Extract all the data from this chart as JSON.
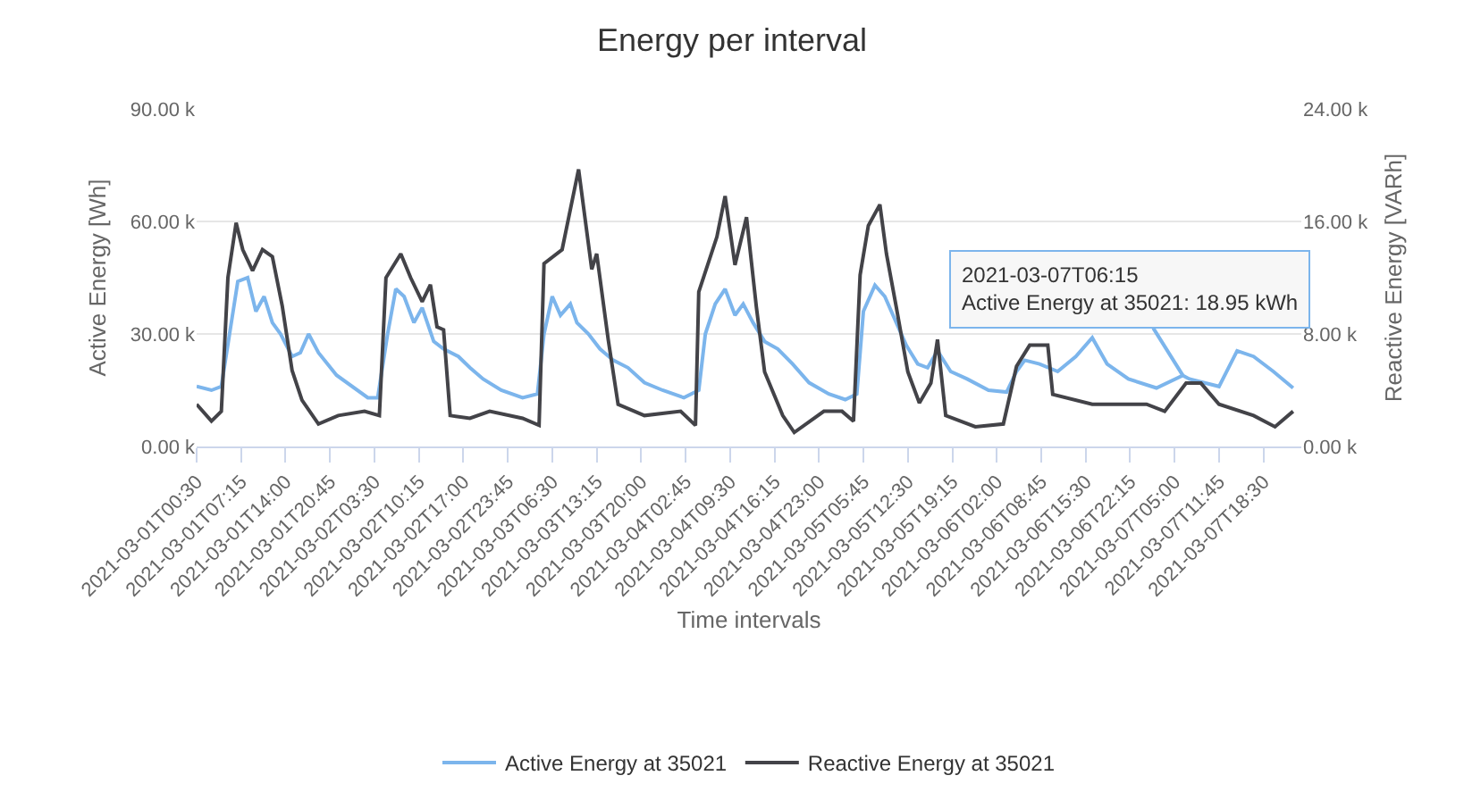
{
  "chart_data": {
    "type": "line",
    "title": "Energy per interval",
    "xlabel": "Time intervals",
    "ylabel": "Active Energy [Wh]",
    "y2label": "Reactive Energy [VARh]",
    "xlim": [
      "2021-03-01T00:30",
      "2021-03-08T00:15"
    ],
    "xticks": [
      "2021-03-01T00:30",
      "2021-03-01T07:15",
      "2021-03-01T14:00",
      "2021-03-01T20:45",
      "2021-03-02T03:30",
      "2021-03-02T10:15",
      "2021-03-02T17:00",
      "2021-03-02T23:45",
      "2021-03-03T06:30",
      "2021-03-03T13:15",
      "2021-03-03T20:00",
      "2021-03-04T02:45",
      "2021-03-04T09:30",
      "2021-03-04T16:15",
      "2021-03-04T23:00",
      "2021-03-05T05:45",
      "2021-03-05T12:30",
      "2021-03-05T19:15",
      "2021-03-06T02:00",
      "2021-03-06T08:45",
      "2021-03-06T15:30",
      "2021-03-06T22:15",
      "2021-03-07T05:00",
      "2021-03-07T11:45",
      "2021-03-07T18:30"
    ],
    "ylim": [
      0,
      90000
    ],
    "yticks": [
      {
        "value": 0,
        "label": "0.00 k"
      },
      {
        "value": 30000,
        "label": "30.00 k"
      },
      {
        "value": 60000,
        "label": "60.00 k"
      },
      {
        "value": 90000,
        "label": "90.00 k"
      }
    ],
    "y2lim": [
      0,
      24000
    ],
    "y2ticks": [
      {
        "value": 0,
        "label": "0.00 k"
      },
      {
        "value": 8000,
        "label": "8.00 k"
      },
      {
        "value": 16000,
        "label": "16.00 k"
      },
      {
        "value": 24000,
        "label": "24.00 k"
      }
    ],
    "grid": "y",
    "legend": "bottom",
    "line_style": "solid",
    "series": [
      {
        "name": "Active Energy at 35021",
        "color": "#7cb5ec",
        "x": [
          "2021-03-01T00:30",
          "2021-03-01T02:45",
          "2021-03-01T04:15",
          "2021-03-01T05:30",
          "2021-03-01T06:45",
          "2021-03-01T08:15",
          "2021-03-01T09:30",
          "2021-03-01T10:45",
          "2021-03-01T12:00",
          "2021-03-01T13:15",
          "2021-03-01T15:00",
          "2021-03-01T16:15",
          "2021-03-01T17:30",
          "2021-03-01T19:00",
          "2021-03-01T21:45",
          "2021-03-02T02:30",
          "2021-03-02T04:00",
          "2021-03-02T05:30",
          "2021-03-02T06:45",
          "2021-03-02T08:00",
          "2021-03-02T09:30",
          "2021-03-02T10:45",
          "2021-03-02T12:30",
          "2021-03-02T14:00",
          "2021-03-02T16:15",
          "2021-03-02T18:00",
          "2021-03-02T20:00",
          "2021-03-02T22:45",
          "2021-03-03T02:00",
          "2021-03-03T04:15",
          "2021-03-03T05:15",
          "2021-03-03T06:30",
          "2021-03-03T07:45",
          "2021-03-03T09:15",
          "2021-03-03T10:15",
          "2021-03-03T12:00",
          "2021-03-03T13:45",
          "2021-03-03T15:45",
          "2021-03-03T18:00",
          "2021-03-03T20:30",
          "2021-03-03T23:15",
          "2021-03-04T02:30",
          "2021-03-04T04:45",
          "2021-03-04T05:45",
          "2021-03-04T07:15",
          "2021-03-04T08:45",
          "2021-03-04T10:15",
          "2021-03-04T11:30",
          "2021-03-04T13:00",
          "2021-03-04T14:45",
          "2021-03-04T16:45",
          "2021-03-04T19:00",
          "2021-03-04T21:30",
          "2021-03-05T00:30",
          "2021-03-05T03:00",
          "2021-03-05T04:45",
          "2021-03-05T05:45",
          "2021-03-05T07:30",
          "2021-03-05T09:00",
          "2021-03-05T10:45",
          "2021-03-05T12:15",
          "2021-03-05T14:00",
          "2021-03-05T15:30",
          "2021-03-05T17:00",
          "2021-03-05T19:00",
          "2021-03-05T21:30",
          "2021-03-06T00:45",
          "2021-03-06T03:30",
          "2021-03-06T05:00",
          "2021-03-06T06:15",
          "2021-03-06T08:30",
          "2021-03-06T11:15",
          "2021-03-06T14:00",
          "2021-03-06T16:30",
          "2021-03-06T18:45",
          "2021-03-06T22:00",
          "2021-03-07T02:15",
          "2021-03-07T06:15",
          "2021-03-07T07:15",
          "2021-03-07T11:45",
          "2021-03-07T14:30",
          "2021-03-07T17:00",
          "2021-03-07T20:00",
          "2021-03-07T23:00"
        ],
        "values": [
          16000,
          15000,
          16000,
          30000,
          44000,
          45000,
          36000,
          40000,
          33000,
          30000,
          24000,
          25000,
          30000,
          25000,
          19000,
          13000,
          13000,
          30000,
          42000,
          40000,
          33000,
          37000,
          28000,
          26000,
          24000,
          21000,
          18000,
          15000,
          13000,
          14000,
          30000,
          40000,
          35000,
          38000,
          33000,
          30000,
          26000,
          23000,
          21000,
          17000,
          15000,
          13000,
          15000,
          30000,
          38000,
          42000,
          35000,
          38000,
          33000,
          28000,
          26000,
          22000,
          17000,
          14000,
          12500,
          14000,
          36000,
          43000,
          40000,
          33000,
          27000,
          22000,
          21000,
          25500,
          20000,
          18000,
          15000,
          14500,
          20000,
          23000,
          22000,
          20000,
          24000,
          29000,
          22000,
          18000,
          15600,
          18950,
          18000,
          16000,
          25500,
          24000,
          20000,
          15600
        ]
      },
      {
        "name": "Reactive Energy at 35021",
        "color": "#434348",
        "axis": "y2",
        "x": [
          "2021-03-01T00:30",
          "2021-03-01T02:45",
          "2021-03-01T04:15",
          "2021-03-01T05:15",
          "2021-03-01T06:30",
          "2021-03-01T07:30",
          "2021-03-01T09:00",
          "2021-03-01T10:30",
          "2021-03-01T12:00",
          "2021-03-01T13:30",
          "2021-03-01T15:00",
          "2021-03-01T16:30",
          "2021-03-01T19:00",
          "2021-03-01T22:00",
          "2021-03-02T02:00",
          "2021-03-02T04:15",
          "2021-03-02T05:15",
          "2021-03-02T07:30",
          "2021-03-02T09:00",
          "2021-03-02T10:45",
          "2021-03-02T12:00",
          "2021-03-02T13:00",
          "2021-03-02T14:00",
          "2021-03-02T15:00",
          "2021-03-02T18:00",
          "2021-03-02T21:00",
          "2021-03-03T02:00",
          "2021-03-03T04:30",
          "2021-03-03T05:15",
          "2021-03-03T08:00",
          "2021-03-03T10:30",
          "2021-03-03T12:30",
          "2021-03-03T13:15",
          "2021-03-03T15:00",
          "2021-03-03T16:30",
          "2021-03-03T20:30",
          "2021-03-04T02:00",
          "2021-03-04T04:15",
          "2021-03-04T04:45",
          "2021-03-04T07:30",
          "2021-03-04T08:45",
          "2021-03-04T10:15",
          "2021-03-04T12:00",
          "2021-03-04T13:30",
          "2021-03-04T14:45",
          "2021-03-04T17:30",
          "2021-03-04T19:15",
          "2021-03-04T23:45",
          "2021-03-05T02:30",
          "2021-03-05T04:15",
          "2021-03-05T05:15",
          "2021-03-05T06:30",
          "2021-03-05T08:15",
          "2021-03-05T09:15",
          "2021-03-05T10:45",
          "2021-03-05T12:30",
          "2021-03-05T14:15",
          "2021-03-05T16:00",
          "2021-03-05T17:00",
          "2021-03-05T18:15",
          "2021-03-05T22:45",
          "2021-03-06T03:00",
          "2021-03-06T05:00",
          "2021-03-06T07:00",
          "2021-03-06T09:45",
          "2021-03-06T10:30",
          "2021-03-06T16:30",
          "2021-03-07T00:45",
          "2021-03-07T03:30",
          "2021-03-07T06:45",
          "2021-03-07T09:00",
          "2021-03-07T11:45",
          "2021-03-07T17:00",
          "2021-03-07T20:15",
          "2021-03-07T23:00"
        ],
        "values": [
          3000,
          1800,
          2500,
          12000,
          15900,
          14000,
          12500,
          14000,
          13500,
          10000,
          5400,
          3300,
          1600,
          2200,
          2500,
          2200,
          12000,
          13700,
          12000,
          10300,
          11500,
          8500,
          8300,
          2200,
          2000,
          2500,
          2000,
          1500,
          13000,
          14000,
          19700,
          12600,
          13700,
          7600,
          3000,
          2200,
          2500,
          1500,
          11000,
          14900,
          17800,
          12900,
          16300,
          9900,
          5300,
          2200,
          1000,
          2500,
          2500,
          1800,
          12200,
          15700,
          17200,
          13700,
          9900,
          5300,
          3100,
          4500,
          7600,
          2200,
          1400,
          1600,
          5700,
          7200,
          7200,
          3700,
          3000,
          3000,
          2500,
          4500,
          4500,
          3000,
          2200,
          1400,
          2500
        ]
      }
    ],
    "annotations": [
      {
        "text": "2021-03-07T06:15\nActive Energy at 35021: 18.95 kWh",
        "x": "2021-03-07T06:15",
        "y": 18950
      }
    ]
  }
}
